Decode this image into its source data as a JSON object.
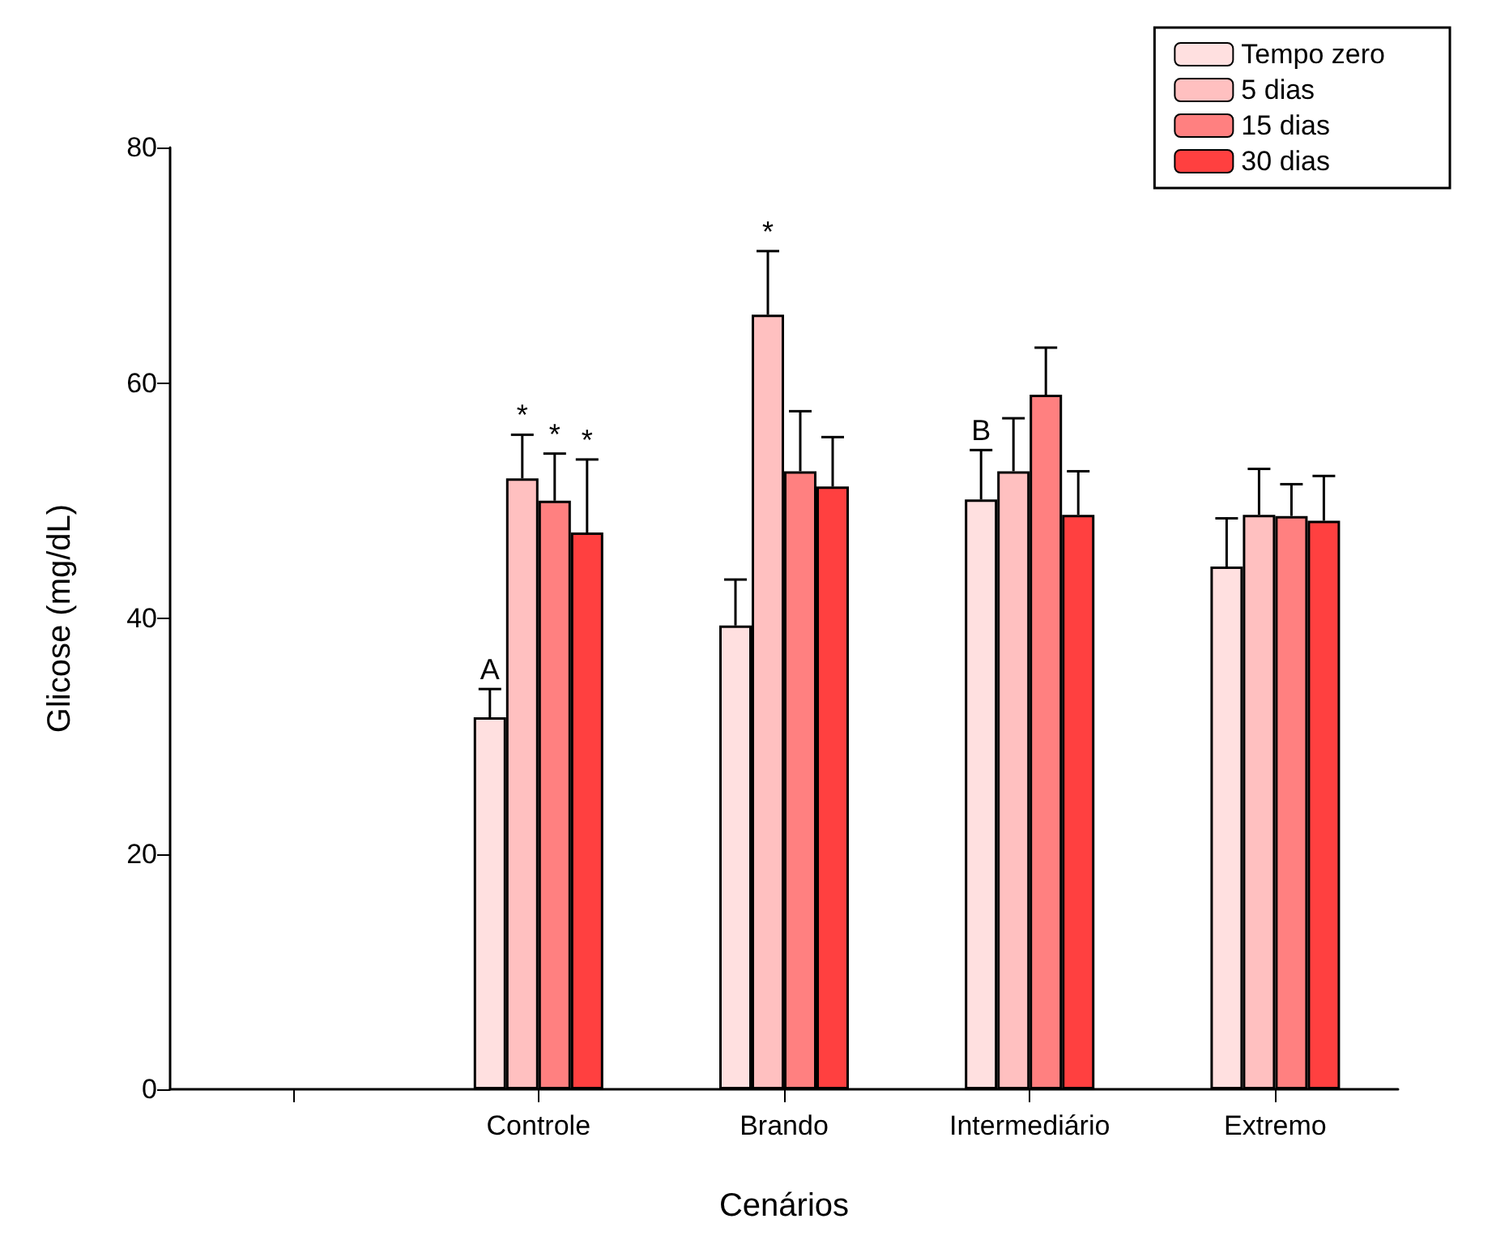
{
  "chart_data": {
    "type": "bar",
    "xlabel": "Cenários",
    "ylabel": "Glicose (mg/dL)",
    "categories": [
      null,
      "Controle",
      "Brando",
      "Intermediário",
      "Extremo"
    ],
    "series": [
      {
        "name": "Tempo zero",
        "color": "#ffe0e0",
        "values": [
          null,
          31.6,
          39.4,
          50.1,
          44.4
        ],
        "errors": [
          null,
          [
            31.6,
            34.0
          ],
          [
            39.4,
            43.3
          ],
          [
            50.1,
            54.3
          ],
          [
            44.4,
            48.5
          ]
        ]
      },
      {
        "name": "5 dias",
        "color": "#ffc0c0",
        "values": [
          null,
          51.9,
          65.8,
          52.5,
          48.8
        ],
        "errors": [
          null,
          [
            51.9,
            55.6
          ],
          [
            65.8,
            71.2
          ],
          [
            52.5,
            57.0
          ],
          [
            48.8,
            52.7
          ]
        ]
      },
      {
        "name": "15 dias",
        "color": "#ff8080",
        "values": [
          null,
          50.0,
          52.5,
          59.0,
          48.7
        ],
        "errors": [
          null,
          [
            50.0,
            54.0
          ],
          [
            52.5,
            57.6
          ],
          [
            59.0,
            63.0
          ],
          [
            48.7,
            51.4
          ]
        ]
      },
      {
        "name": "30 dias",
        "color": "#ff4040",
        "values": [
          null,
          47.3,
          51.2,
          48.8,
          48.3
        ],
        "errors": [
          null,
          [
            47.3,
            53.5
          ],
          [
            51.2,
            55.4
          ],
          [
            48.8,
            52.5
          ],
          [
            48.3,
            52.1
          ]
        ]
      }
    ],
    "annotations": [
      {
        "text": "A",
        "x": "Controle",
        "y": 34.0
      },
      {
        "text": "*",
        "x": "Controle",
        "y": 55.6
      },
      {
        "text": "*",
        "x": "Controle",
        "y": 54.0
      },
      {
        "text": "*",
        "x": "Controle",
        "y": 53.5
      },
      {
        "text": "*",
        "x": "Brando",
        "y": 71.2
      },
      {
        "text": "B",
        "x": "Intermediário",
        "y": 54.3
      }
    ],
    "ylim": [
      0,
      80
    ],
    "yticks": [
      0,
      20,
      40,
      60,
      80
    ],
    "grid": false,
    "legend": "top right"
  }
}
